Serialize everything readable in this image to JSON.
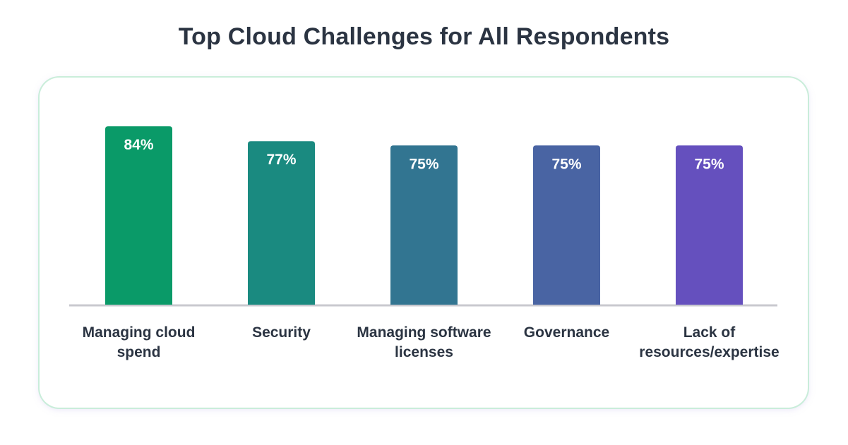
{
  "chart_data": {
    "type": "bar",
    "title": "Top Cloud Challenges for All Respondents",
    "categories": [
      [
        "Managing cloud",
        "spend"
      ],
      [
        "Security"
      ],
      [
        "Managing software",
        "licenses"
      ],
      [
        "Governance"
      ],
      [
        "Lack of",
        "resources/expertise"
      ]
    ],
    "values": [
      84,
      77,
      75,
      75,
      75
    ],
    "data_labels": [
      "84%",
      "77%",
      "75%",
      "75%",
      "75%"
    ],
    "value_unit": "%",
    "bar_colors": [
      "#0a9a68",
      "#1a8a80",
      "#327591",
      "#4964a3",
      "#6550be"
    ],
    "axis_line_color": "#c9c9cf",
    "ylim": [
      0,
      100
    ],
    "grid": false,
    "legend": "none"
  }
}
